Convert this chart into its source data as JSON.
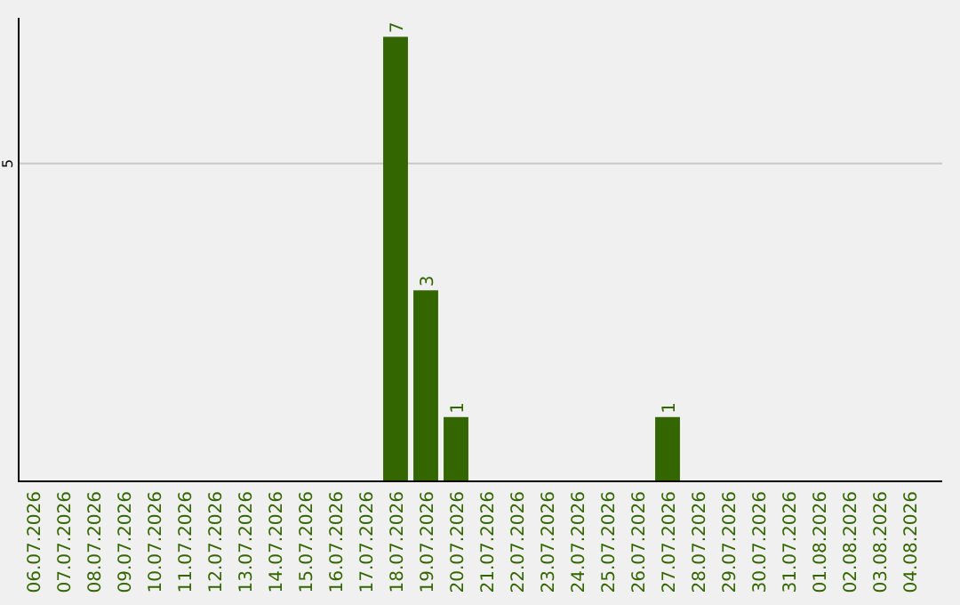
{
  "chart_data": {
    "type": "bar",
    "categories": [
      "06.07.2026",
      "07.07.2026",
      "08.07.2026",
      "09.07.2026",
      "10.07.2026",
      "11.07.2026",
      "12.07.2026",
      "13.07.2026",
      "14.07.2026",
      "15.07.2026",
      "16.07.2026",
      "17.07.2026",
      "18.07.2026",
      "19.07.2026",
      "20.07.2026",
      "21.07.2026",
      "22.07.2026",
      "23.07.2026",
      "24.07.2026",
      "25.07.2026",
      "26.07.2026",
      "27.07.2026",
      "28.07.2026",
      "29.07.2026",
      "30.07.2026",
      "31.07.2026",
      "01.08.2026",
      "02.08.2026",
      "03.08.2026",
      "04.08.2026"
    ],
    "values": [
      null,
      null,
      null,
      null,
      null,
      null,
      null,
      null,
      null,
      null,
      null,
      null,
      7,
      3,
      1,
      null,
      null,
      null,
      null,
      null,
      null,
      1,
      null,
      null,
      null,
      null,
      null,
      null,
      null,
      null
    ],
    "value_labels": [
      null,
      null,
      null,
      null,
      null,
      null,
      null,
      null,
      null,
      null,
      null,
      null,
      "7",
      "3",
      "1",
      null,
      null,
      null,
      null,
      null,
      null,
      "1",
      null,
      null,
      null,
      null,
      null,
      null,
      null,
      null
    ],
    "color": "#336600",
    "ylim": [
      0,
      7.3
    ],
    "yticks": [
      5
    ],
    "grid": "y"
  }
}
